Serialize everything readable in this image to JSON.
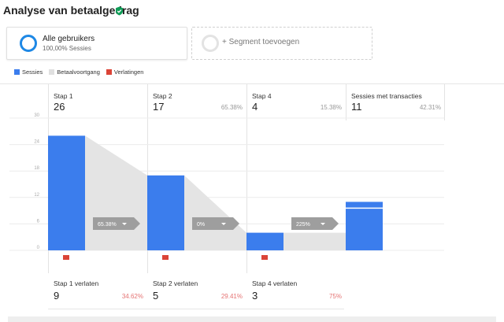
{
  "title": "Analyse van betaalgedrag",
  "segments": [
    {
      "name": "Alle gebruikers",
      "sub": "100,00% Sessies"
    },
    {
      "name": "+ Segment toevoegen"
    }
  ],
  "legend": [
    {
      "label": "Sessies",
      "color": "#3b7ded"
    },
    {
      "label": "Betaalvoortgang",
      "color": "#e0e0e0"
    },
    {
      "label": "Verlatingen",
      "color": "#db4437"
    }
  ],
  "steps": [
    {
      "label": "Stap 1",
      "count": "26",
      "pct": ""
    },
    {
      "label": "Stap 2",
      "count": "17",
      "pct": "65.38%"
    },
    {
      "label": "Stap 4",
      "count": "4",
      "pct": "15.38%"
    },
    {
      "label": "Sessies met transacties",
      "count": "11",
      "pct": "42.31%"
    }
  ],
  "drops": [
    {
      "label": "Stap 1 verlaten",
      "count": "9",
      "pct": "34.62%"
    },
    {
      "label": "Stap 2 verlaten",
      "count": "5",
      "pct": "29.41%"
    },
    {
      "label": "Stap 4 verlaten",
      "count": "3",
      "pct": "75%"
    }
  ],
  "badges": [
    "65.38%",
    "0%",
    "225%"
  ],
  "chart_data": {
    "type": "bar",
    "categories": [
      "Stap 1",
      "Stap 2",
      "Stap 4",
      "Sessies met transacties"
    ],
    "values": [
      26,
      17,
      4,
      11
    ],
    "ylim": [
      0,
      30
    ],
    "yticks": [
      "30",
      "24",
      "18",
      "12",
      "6",
      "0"
    ]
  }
}
